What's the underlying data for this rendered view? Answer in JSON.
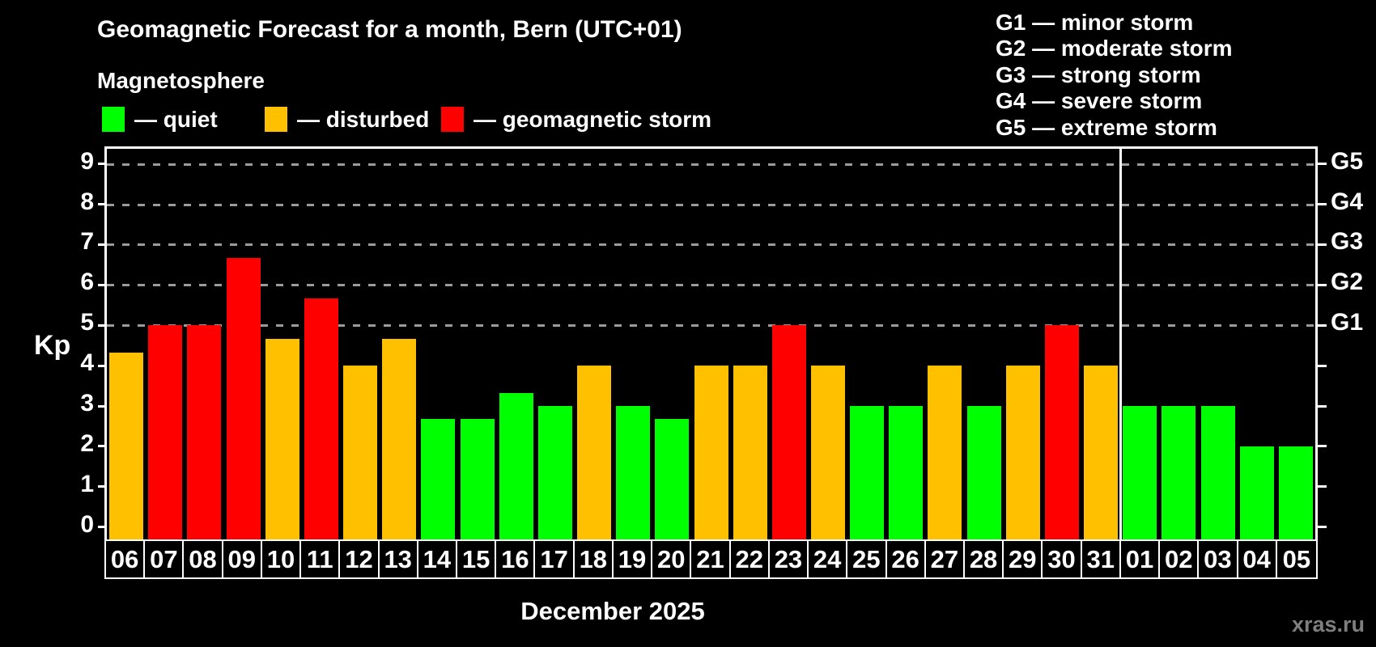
{
  "title": "Geomagnetic Forecast for a month, Bern (UTC+01)",
  "subtitle": "Magnetosphere",
  "legend": {
    "quiet": {
      "label": "— quiet",
      "color": "#00ff00"
    },
    "disturbed": {
      "label": "— disturbed",
      "color": "#ffc000"
    },
    "storm": {
      "label": "— geomagnetic storm",
      "color": "#ff0000"
    }
  },
  "g_legend": [
    "G1 — minor storm",
    "G2 — moderate storm",
    "G3 — strong storm",
    "G4 — severe storm",
    "G5 — extreme storm"
  ],
  "axis": {
    "y_title": "Kp",
    "y_ticks": [
      0,
      1,
      2,
      3,
      4,
      5,
      6,
      7,
      8,
      9
    ],
    "right_axis": [
      {
        "label": "G1",
        "kp": 5
      },
      {
        "label": "G2",
        "kp": 6
      },
      {
        "label": "G3",
        "kp": 7
      },
      {
        "label": "G4",
        "kp": 8
      },
      {
        "label": "G5",
        "kp": 9
      }
    ]
  },
  "month_label": "December 2025",
  "watermark": "xras.ru",
  "chart_data": {
    "type": "bar",
    "title": "Geomagnetic Forecast for a month, Bern (UTC+01)",
    "subtitle": "Magnetosphere",
    "xlabel": "December 2025",
    "ylabel": "Kp",
    "ylim": [
      0,
      9
    ],
    "gridlines_kp": [
      5,
      6,
      7,
      8,
      9
    ],
    "grid": "dashed horizontal at storm levels only",
    "legend_position": "top-left",
    "month_divider_after": "31",
    "status_meaning": {
      "quiet": "green",
      "disturbed": "orange",
      "storm": "red"
    },
    "days": [
      {
        "label": "06",
        "kp": 4.33,
        "status": "disturbed"
      },
      {
        "label": "07",
        "kp": 5.0,
        "status": "storm"
      },
      {
        "label": "08",
        "kp": 5.0,
        "status": "storm"
      },
      {
        "label": "09",
        "kp": 6.67,
        "status": "storm"
      },
      {
        "label": "10",
        "kp": 4.67,
        "status": "disturbed"
      },
      {
        "label": "11",
        "kp": 5.67,
        "status": "storm"
      },
      {
        "label": "12",
        "kp": 4.0,
        "status": "disturbed"
      },
      {
        "label": "13",
        "kp": 4.67,
        "status": "disturbed"
      },
      {
        "label": "14",
        "kp": 2.67,
        "status": "quiet"
      },
      {
        "label": "15",
        "kp": 2.67,
        "status": "quiet"
      },
      {
        "label": "16",
        "kp": 3.33,
        "status": "quiet"
      },
      {
        "label": "17",
        "kp": 3.0,
        "status": "quiet"
      },
      {
        "label": "18",
        "kp": 4.0,
        "status": "disturbed"
      },
      {
        "label": "19",
        "kp": 3.0,
        "status": "quiet"
      },
      {
        "label": "20",
        "kp": 2.67,
        "status": "quiet"
      },
      {
        "label": "21",
        "kp": 4.0,
        "status": "disturbed"
      },
      {
        "label": "22",
        "kp": 4.0,
        "status": "disturbed"
      },
      {
        "label": "23",
        "kp": 5.0,
        "status": "storm"
      },
      {
        "label": "24",
        "kp": 4.0,
        "status": "disturbed"
      },
      {
        "label": "25",
        "kp": 3.0,
        "status": "quiet"
      },
      {
        "label": "26",
        "kp": 3.0,
        "status": "quiet"
      },
      {
        "label": "27",
        "kp": 4.0,
        "status": "disturbed"
      },
      {
        "label": "28",
        "kp": 3.0,
        "status": "quiet"
      },
      {
        "label": "29",
        "kp": 4.0,
        "status": "disturbed"
      },
      {
        "label": "30",
        "kp": 5.0,
        "status": "storm"
      },
      {
        "label": "31",
        "kp": 4.0,
        "status": "disturbed"
      },
      {
        "label": "01",
        "kp": 3.0,
        "status": "quiet"
      },
      {
        "label": "02",
        "kp": 3.0,
        "status": "quiet"
      },
      {
        "label": "03",
        "kp": 3.0,
        "status": "quiet"
      },
      {
        "label": "04",
        "kp": 2.0,
        "status": "quiet"
      },
      {
        "label": "05",
        "kp": 2.0,
        "status": "quiet"
      }
    ]
  }
}
